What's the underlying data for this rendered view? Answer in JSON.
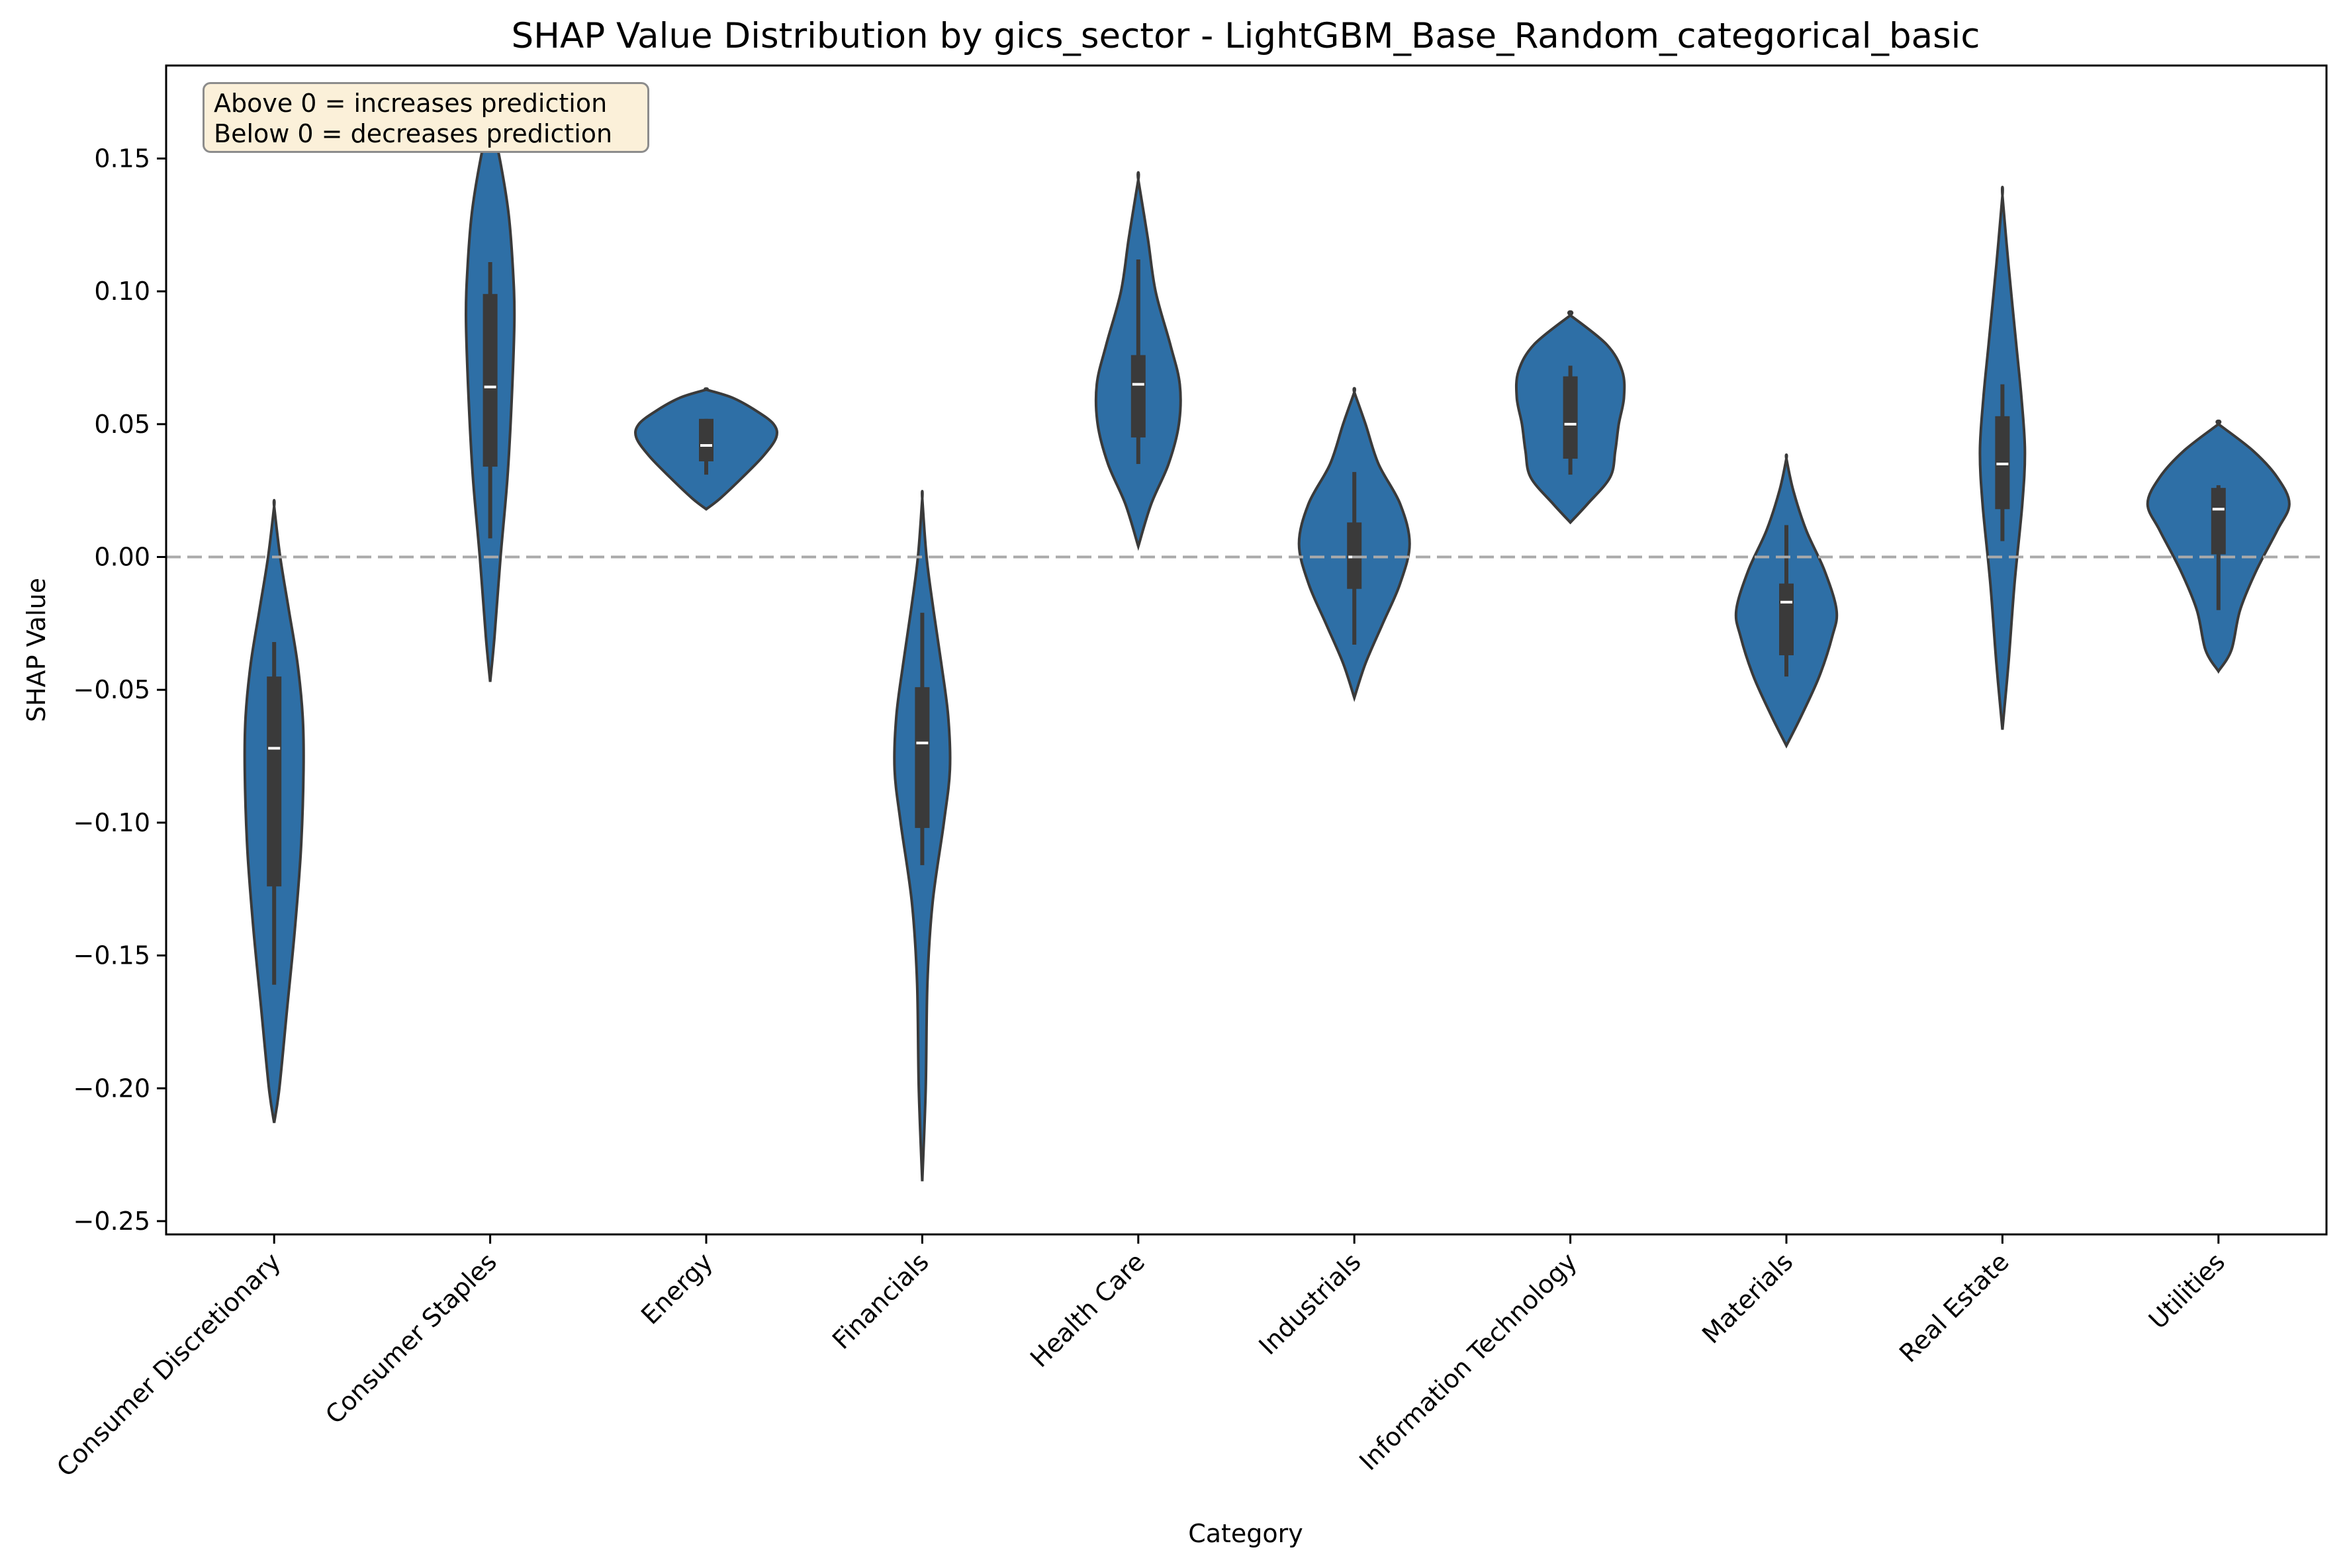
{
  "chart_data": {
    "type": "violin",
    "title": "SHAP Value Distribution by gics_sector - LightGBM_Base_Random_categorical_basic",
    "xlabel": "Category",
    "ylabel": "SHAP Value",
    "ylim": [
      -0.255,
      0.185
    ],
    "yticks": [
      "0.15",
      "0.10",
      "0.05",
      "0.00",
      "−0.05",
      "−0.10",
      "−0.15",
      "−0.20",
      "−0.25"
    ],
    "ytick_values": [
      0.15,
      0.1,
      0.05,
      0.0,
      -0.05,
      -0.1,
      -0.15,
      -0.2,
      -0.25
    ],
    "reference_line": 0,
    "grid": false,
    "violin_color": "#2e6fa6",
    "annotation": [
      "Above 0 = increases prediction",
      "Below 0 = decreases prediction"
    ],
    "categories": [
      "Consumer Discretionary",
      "Consumer Staples",
      "Energy",
      "Financials",
      "Health Care",
      "Industrials",
      "Information Technology",
      "Materials",
      "Real Estate",
      "Utilities"
    ],
    "violins": [
      {
        "min": -0.161,
        "q1": -0.124,
        "median": -0.072,
        "q3": -0.045,
        "max": -0.032,
        "kde_min": -0.213,
        "kde_max": 0.019,
        "profile": [
          [
            -0.213,
            0.0
          ],
          [
            -0.2,
            0.06
          ],
          [
            -0.17,
            0.15
          ],
          [
            -0.14,
            0.24
          ],
          [
            -0.11,
            0.31
          ],
          [
            -0.08,
            0.34
          ],
          [
            -0.06,
            0.33
          ],
          [
            -0.04,
            0.27
          ],
          [
            -0.02,
            0.17
          ],
          [
            0.0,
            0.07
          ],
          [
            0.019,
            0.0
          ]
        ]
      },
      {
        "min": 0.007,
        "q1": 0.034,
        "median": 0.064,
        "q3": 0.099,
        "max": 0.111,
        "kde_min": -0.047,
        "kde_max": 0.166,
        "profile": [
          [
            -0.047,
            0.0
          ],
          [
            -0.03,
            0.05
          ],
          [
            0.0,
            0.12
          ],
          [
            0.03,
            0.2
          ],
          [
            0.06,
            0.25
          ],
          [
            0.09,
            0.28
          ],
          [
            0.11,
            0.26
          ],
          [
            0.13,
            0.21
          ],
          [
            0.15,
            0.11
          ],
          [
            0.166,
            0.0
          ]
        ]
      },
      {
        "min": 0.031,
        "q1": 0.036,
        "median": 0.042,
        "q3": 0.052,
        "max": 0.052,
        "kde_min": 0.018,
        "kde_max": 0.063,
        "profile": [
          [
            0.018,
            0.0
          ],
          [
            0.022,
            0.16
          ],
          [
            0.03,
            0.42
          ],
          [
            0.038,
            0.66
          ],
          [
            0.045,
            0.81
          ],
          [
            0.05,
            0.78
          ],
          [
            0.055,
            0.58
          ],
          [
            0.06,
            0.3
          ],
          [
            0.063,
            0.0
          ]
        ]
      },
      {
        "min": -0.116,
        "q1": -0.102,
        "median": -0.07,
        "q3": -0.049,
        "max": -0.021,
        "kde_min": -0.235,
        "kde_max": 0.022,
        "profile": [
          [
            -0.235,
            0.0
          ],
          [
            -0.2,
            0.04
          ],
          [
            -0.16,
            0.06
          ],
          [
            -0.13,
            0.12
          ],
          [
            -0.1,
            0.25
          ],
          [
            -0.08,
            0.32
          ],
          [
            -0.06,
            0.3
          ],
          [
            -0.04,
            0.22
          ],
          [
            -0.02,
            0.13
          ],
          [
            0.0,
            0.05
          ],
          [
            0.022,
            0.0
          ]
        ]
      },
      {
        "min": 0.035,
        "q1": 0.045,
        "median": 0.065,
        "q3": 0.076,
        "max": 0.112,
        "kde_min": 0.004,
        "kde_max": 0.142,
        "profile": [
          [
            0.004,
            0.0
          ],
          [
            0.02,
            0.15
          ],
          [
            0.035,
            0.35
          ],
          [
            0.05,
            0.47
          ],
          [
            0.065,
            0.48
          ],
          [
            0.08,
            0.37
          ],
          [
            0.1,
            0.2
          ],
          [
            0.12,
            0.11
          ],
          [
            0.142,
            0.0
          ]
        ]
      },
      {
        "min": -0.033,
        "q1": -0.012,
        "median": 0.0,
        "q3": 0.013,
        "max": 0.032,
        "kde_min": -0.053,
        "kde_max": 0.062,
        "profile": [
          [
            -0.053,
            0.0
          ],
          [
            -0.04,
            0.13
          ],
          [
            -0.025,
            0.33
          ],
          [
            -0.01,
            0.53
          ],
          [
            0.005,
            0.64
          ],
          [
            0.02,
            0.53
          ],
          [
            0.035,
            0.28
          ],
          [
            0.05,
            0.13
          ],
          [
            0.062,
            0.0
          ]
        ]
      },
      {
        "min": 0.031,
        "q1": 0.037,
        "median": 0.05,
        "q3": 0.068,
        "max": 0.072,
        "kde_min": 0.013,
        "kde_max": 0.091,
        "profile": [
          [
            0.013,
            0.0
          ],
          [
            0.02,
            0.2
          ],
          [
            0.03,
            0.46
          ],
          [
            0.04,
            0.52
          ],
          [
            0.05,
            0.56
          ],
          [
            0.06,
            0.62
          ],
          [
            0.07,
            0.6
          ],
          [
            0.08,
            0.42
          ],
          [
            0.091,
            0.0
          ]
        ]
      },
      {
        "min": -0.045,
        "q1": -0.037,
        "median": -0.017,
        "q3": -0.01,
        "max": 0.012,
        "kde_min": -0.071,
        "kde_max": 0.037,
        "profile": [
          [
            -0.071,
            0.0
          ],
          [
            -0.06,
            0.17
          ],
          [
            -0.045,
            0.38
          ],
          [
            -0.03,
            0.53
          ],
          [
            -0.02,
            0.58
          ],
          [
            -0.005,
            0.44
          ],
          [
            0.01,
            0.23
          ],
          [
            0.025,
            0.08
          ],
          [
            0.037,
            0.0
          ]
        ]
      },
      {
        "min": 0.006,
        "q1": 0.018,
        "median": 0.035,
        "q3": 0.053,
        "max": 0.065,
        "kde_min": -0.065,
        "kde_max": 0.136,
        "profile": [
          [
            -0.065,
            0.0
          ],
          [
            -0.04,
            0.07
          ],
          [
            -0.01,
            0.14
          ],
          [
            0.02,
            0.23
          ],
          [
            0.04,
            0.26
          ],
          [
            0.06,
            0.22
          ],
          [
            0.08,
            0.16
          ],
          [
            0.11,
            0.07
          ],
          [
            0.136,
            0.0
          ]
        ]
      },
      {
        "min": -0.02,
        "q1": 0.001,
        "median": 0.018,
        "q3": 0.026,
        "max": 0.027,
        "kde_min": -0.043,
        "kde_max": 0.05,
        "profile": [
          [
            -0.043,
            0.0
          ],
          [
            -0.035,
            0.15
          ],
          [
            -0.02,
            0.25
          ],
          [
            -0.005,
            0.44
          ],
          [
            0.01,
            0.68
          ],
          [
            0.02,
            0.82
          ],
          [
            0.03,
            0.68
          ],
          [
            0.04,
            0.4
          ],
          [
            0.05,
            0.0
          ]
        ]
      }
    ]
  }
}
